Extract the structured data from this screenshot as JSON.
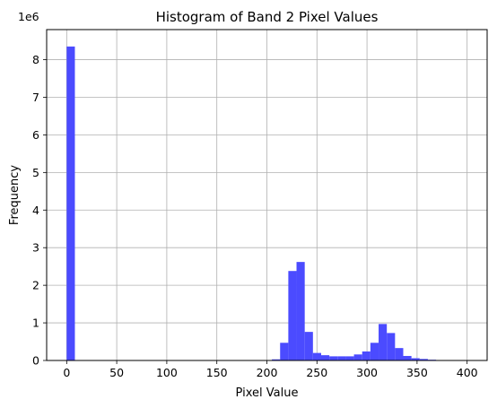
{
  "chart_data": {
    "type": "bar",
    "title": "Histogram of Band 2 Pixel Values",
    "xlabel": "Pixel Value",
    "ylabel": "Frequency",
    "y_scale_label": "1e6",
    "xlim": [
      -20,
      420
    ],
    "ylim": [
      0,
      8.8
    ],
    "x_ticks": [
      0,
      50,
      100,
      150,
      200,
      250,
      300,
      350,
      400
    ],
    "y_ticks": [
      0,
      1,
      2,
      3,
      4,
      5,
      6,
      7,
      8
    ],
    "grid": true,
    "bar_color": "#4b4bff",
    "bin_width": 8.2,
    "series": [
      {
        "bins": [
          {
            "x0": 0,
            "x1": 8.2,
            "value": 8.35
          },
          {
            "x0": 205.0,
            "x1": 213.2,
            "value": 0.03
          },
          {
            "x0": 213.2,
            "x1": 221.4,
            "value": 0.47
          },
          {
            "x0": 221.4,
            "x1": 229.6,
            "value": 2.38
          },
          {
            "x0": 229.6,
            "x1": 237.8,
            "value": 2.62
          },
          {
            "x0": 237.8,
            "x1": 246.0,
            "value": 0.76
          },
          {
            "x0": 246.0,
            "x1": 254.2,
            "value": 0.2
          },
          {
            "x0": 254.2,
            "x1": 262.4,
            "value": 0.14
          },
          {
            "x0": 262.4,
            "x1": 270.6,
            "value": 0.11
          },
          {
            "x0": 270.6,
            "x1": 278.8,
            "value": 0.11
          },
          {
            "x0": 278.8,
            "x1": 287.0,
            "value": 0.11
          },
          {
            "x0": 287.0,
            "x1": 295.2,
            "value": 0.16
          },
          {
            "x0": 295.2,
            "x1": 303.4,
            "value": 0.24
          },
          {
            "x0": 303.4,
            "x1": 311.6,
            "value": 0.47
          },
          {
            "x0": 311.6,
            "x1": 319.8,
            "value": 0.97
          },
          {
            "x0": 319.8,
            "x1": 328.0,
            "value": 0.73
          },
          {
            "x0": 328.0,
            "x1": 336.2,
            "value": 0.33
          },
          {
            "x0": 336.2,
            "x1": 344.4,
            "value": 0.12
          },
          {
            "x0": 344.4,
            "x1": 352.6,
            "value": 0.06
          },
          {
            "x0": 352.6,
            "x1": 360.8,
            "value": 0.04
          },
          {
            "x0": 360.8,
            "x1": 369.0,
            "value": 0.02
          },
          {
            "x0": 369.0,
            "x1": 377.2,
            "value": 0.01
          }
        ]
      }
    ]
  }
}
